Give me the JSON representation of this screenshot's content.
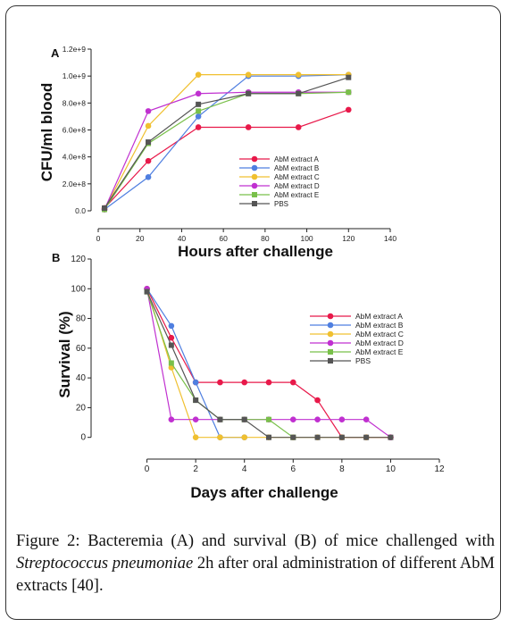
{
  "caption": {
    "figure_label": "Figure 2:",
    "text_before_italic": " Bacteremia (A) and survival (B) of mice challenged with ",
    "italic_text": "Streptococcus pneumoniae",
    "text_after_italic": " 2h after oral administration of different AbM extracts [40]."
  },
  "chart_data": [
    {
      "panel_label": "A",
      "type": "line",
      "xlabel": "Hours after challenge",
      "ylabel": "CFU/ml blood",
      "xlim": [
        0,
        140
      ],
      "ylim": [
        0,
        1200000000
      ],
      "x_ticks": [
        0,
        20,
        40,
        60,
        80,
        100,
        120,
        140
      ],
      "x_tick_labels": [
        "0",
        "20",
        "40",
        "60",
        "80",
        "100",
        "120",
        "140"
      ],
      "y_ticks": [
        0,
        200000000,
        400000000,
        600000000,
        800000000,
        1000000000,
        1200000000
      ],
      "y_tick_labels": [
        "0.0",
        "2.0e+8",
        "4.0e+8",
        "6.0e+8",
        "8.0e+8",
        "1.0e+9",
        "1.2e+9"
      ],
      "legend_position": "lower-right",
      "series": [
        {
          "name": "AbM extract A",
          "color": "#e8194a",
          "marker": "circle",
          "x": [
            3,
            24,
            48,
            72,
            96,
            120
          ],
          "y": [
            20000000,
            370000000,
            620000000,
            620000000,
            620000000,
            750000000
          ]
        },
        {
          "name": "AbM extract B",
          "color": "#4f7fe0",
          "marker": "circle",
          "x": [
            3,
            24,
            48,
            72,
            96,
            120
          ],
          "y": [
            10000000,
            250000000,
            700000000,
            1000000000,
            1000000000,
            1010000000
          ]
        },
        {
          "name": "AbM extract C",
          "color": "#f0c030",
          "marker": "circle",
          "x": [
            3,
            24,
            48,
            72,
            96,
            120
          ],
          "y": [
            10000000,
            630000000,
            1010000000,
            1010000000,
            1010000000,
            1010000000
          ]
        },
        {
          "name": "AbM extract D",
          "color": "#c030d0",
          "marker": "circle",
          "x": [
            3,
            24,
            48,
            72,
            96,
            120
          ],
          "y": [
            10000000,
            740000000,
            870000000,
            880000000,
            880000000,
            880000000
          ]
        },
        {
          "name": "AbM extract E",
          "color": "#79c04a",
          "marker": "square",
          "x": [
            3,
            24,
            48,
            72,
            96,
            120
          ],
          "y": [
            10000000,
            500000000,
            740000000,
            870000000,
            870000000,
            880000000
          ]
        },
        {
          "name": "PBS",
          "color": "#555555",
          "marker": "square",
          "x": [
            3,
            24,
            48,
            72,
            96,
            120
          ],
          "y": [
            20000000,
            510000000,
            790000000,
            870000000,
            870000000,
            990000000
          ]
        }
      ]
    },
    {
      "panel_label": "B",
      "type": "line",
      "xlabel": "Days after challenge",
      "ylabel": "Survival (%)",
      "xlim": [
        -2,
        12
      ],
      "ylim": [
        -5,
        120
      ],
      "x_ticks": [
        0,
        2,
        4,
        6,
        8,
        10,
        12
      ],
      "x_tick_labels": [
        "0",
        "2",
        "4",
        "6",
        "8",
        "10",
        "12"
      ],
      "y_ticks": [
        0,
        20,
        40,
        60,
        80,
        100,
        120
      ],
      "y_tick_labels": [
        "0",
        "20",
        "40",
        "60",
        "80",
        "100",
        "120"
      ],
      "legend_position": "right",
      "series": [
        {
          "name": "AbM extract A",
          "color": "#e8194a",
          "marker": "circle",
          "x": [
            0,
            1,
            2,
            3,
            4,
            5,
            6,
            7,
            8,
            9,
            10
          ],
          "y": [
            100,
            67,
            37,
            37,
            37,
            37,
            37,
            25,
            0,
            0,
            0
          ]
        },
        {
          "name": "AbM extract B",
          "color": "#4f7fe0",
          "marker": "circle",
          "x": [
            0,
            1,
            2,
            3,
            4
          ],
          "y": [
            100,
            75,
            37,
            0,
            0
          ]
        },
        {
          "name": "AbM extract C",
          "color": "#f0c030",
          "marker": "circle",
          "x": [
            0,
            1,
            2,
            3,
            4,
            5,
            6,
            7,
            8,
            9,
            10
          ],
          "y": [
            100,
            47,
            0,
            0,
            0,
            0,
            0,
            0,
            0,
            0,
            0
          ]
        },
        {
          "name": "AbM extract D",
          "color": "#c030d0",
          "marker": "circle",
          "x": [
            0,
            1,
            2,
            3,
            4,
            5,
            6,
            7,
            8,
            9,
            10
          ],
          "y": [
            100,
            12,
            12,
            12,
            12,
            12,
            12,
            12,
            12,
            12,
            0
          ]
        },
        {
          "name": "AbM extract E",
          "color": "#79c04a",
          "marker": "square",
          "x": [
            0,
            1,
            2,
            3,
            4,
            5,
            6
          ],
          "y": [
            98,
            50,
            25,
            12,
            12,
            12,
            0
          ]
        },
        {
          "name": "PBS",
          "color": "#555555",
          "marker": "square",
          "x": [
            0,
            1,
            2,
            3,
            4,
            5,
            6,
            7,
            8,
            9,
            10
          ],
          "y": [
            98,
            62,
            25,
            12,
            12,
            0,
            0,
            0,
            0,
            0,
            0
          ]
        }
      ]
    }
  ]
}
